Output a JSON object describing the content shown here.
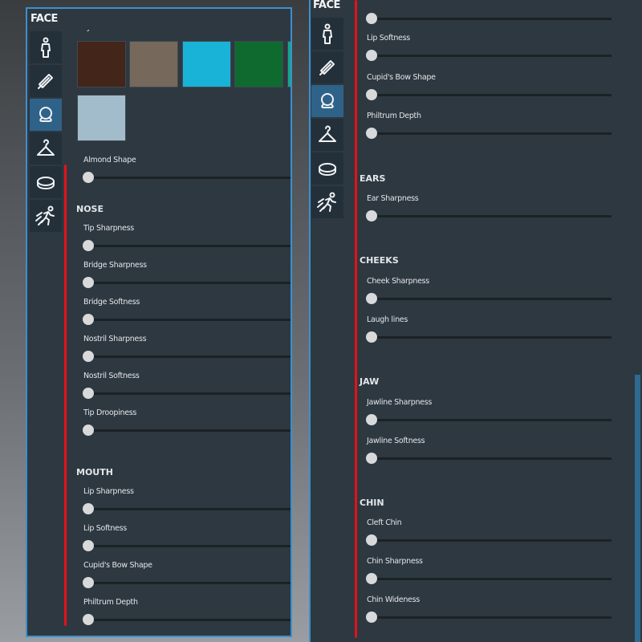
{
  "left_panel": {
    "title": "FACE",
    "eye_color_label": "Eye Color",
    "eye_colors": [
      "#43251a",
      "#76685a",
      "#1ab3d8",
      "#0e6a2f",
      "#12a889",
      "#a3bccb"
    ],
    "tabs": [
      {
        "icon": "body-icon",
        "active": false
      },
      {
        "icon": "comb-icon",
        "active": false
      },
      {
        "icon": "face-icon",
        "active": true
      },
      {
        "icon": "hanger-icon",
        "active": false
      },
      {
        "icon": "ring-icon",
        "active": false
      },
      {
        "icon": "running-icon",
        "active": false
      }
    ],
    "sections": [
      {
        "title": "",
        "sliders": [
          {
            "label": "Almond Shape",
            "value": 0
          }
        ]
      },
      {
        "title": "NOSE",
        "sliders": [
          {
            "label": "Tip Sharpness",
            "value": 0
          },
          {
            "label": "Bridge Sharpness",
            "value": 0
          },
          {
            "label": "Bridge Softness",
            "value": 0
          },
          {
            "label": "Nostril Sharpness",
            "value": 0
          },
          {
            "label": "Nostril Softness",
            "value": 0
          },
          {
            "label": "Tip Droopiness",
            "value": 0
          }
        ]
      },
      {
        "title": "MOUTH",
        "sliders": [
          {
            "label": "Lip Sharpness",
            "value": 0
          },
          {
            "label": "Lip Softness",
            "value": 0
          },
          {
            "label": "Cupid's Bow Shape",
            "value": 0
          },
          {
            "label": "Philtrum Depth",
            "value": 0
          }
        ]
      }
    ]
  },
  "right_panel": {
    "title": "FACE",
    "sections": [
      {
        "title": "",
        "sliders": [
          {
            "label": "",
            "value": 0
          },
          {
            "label": "Lip Softness",
            "value": 0
          },
          {
            "label": "Cupid's Bow Shape",
            "value": 0
          },
          {
            "label": "Philtrum Depth",
            "value": 0
          }
        ]
      },
      {
        "title": "EARS",
        "sliders": [
          {
            "label": "Ear Sharpness",
            "value": 0
          }
        ]
      },
      {
        "title": "CHEEKS",
        "sliders": [
          {
            "label": "Cheek Sharpness",
            "value": 0
          },
          {
            "label": "Laugh lines",
            "value": 0
          }
        ]
      },
      {
        "title": "JAW",
        "sliders": [
          {
            "label": "Jawline Sharpness",
            "value": 0
          },
          {
            "label": "Jawline Softness",
            "value": 0
          }
        ]
      },
      {
        "title": "CHIN",
        "sliders": [
          {
            "label": "Cleft Chin",
            "value": 0
          },
          {
            "label": "Chin Sharpness",
            "value": 0
          },
          {
            "label": "Chin Wideness",
            "value": 0
          }
        ]
      }
    ]
  },
  "colors": {
    "accent": "#3b8fd0",
    "active_tab": "#2f6288",
    "panel_bg": "#2e3840",
    "marker": "#e3121b"
  }
}
